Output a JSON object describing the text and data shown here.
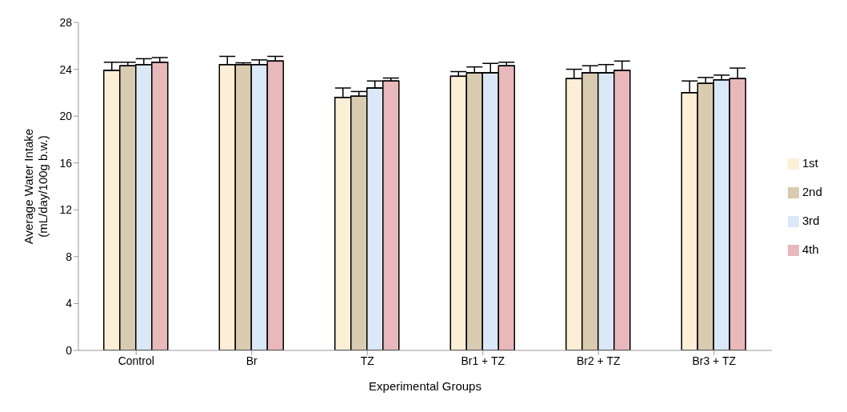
{
  "chart_data": {
    "type": "bar",
    "xlabel": "Experimental Groups",
    "ylabel": "Average Water Intake\n(mL/day/100g b.w.)",
    "categories": [
      "Control",
      "Br",
      "TZ",
      "Br1 + TZ",
      "Br2 + TZ",
      "Br3 + TZ"
    ],
    "series": [
      {
        "name": "1st",
        "color": "#fcefd6",
        "values": [
          23.9,
          24.4,
          21.6,
          23.4,
          23.2,
          22.0
        ],
        "errors": [
          0.7,
          0.7,
          0.8,
          0.4,
          0.8,
          1.0
        ]
      },
      {
        "name": "2nd",
        "color": "#d9cbb0",
        "values": [
          24.3,
          24.4,
          21.7,
          23.7,
          23.7,
          22.8
        ],
        "errors": [
          0.3,
          0.15,
          0.4,
          0.5,
          0.6,
          0.5
        ]
      },
      {
        "name": "3rd",
        "color": "#dbe8f7",
        "values": [
          24.4,
          24.4,
          22.4,
          23.7,
          23.7,
          23.1
        ],
        "errors": [
          0.5,
          0.4,
          0.6,
          0.8,
          0.7,
          0.4
        ]
      },
      {
        "name": "4th",
        "color": "#e8b8ba",
        "values": [
          24.6,
          24.7,
          23.0,
          24.3,
          23.9,
          23.2
        ],
        "errors": [
          0.4,
          0.4,
          0.25,
          0.3,
          0.8,
          0.9
        ]
      }
    ],
    "ylim": [
      0,
      28
    ],
    "yticks": [
      0,
      4,
      8,
      12,
      16,
      20,
      24,
      28
    ],
    "grid": false,
    "legend": "right"
  }
}
